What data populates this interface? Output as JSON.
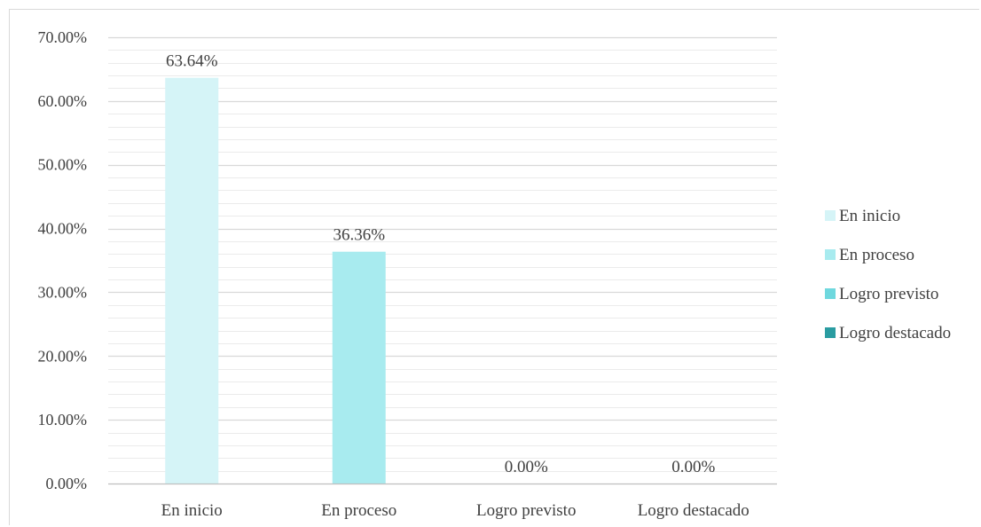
{
  "chart_data": {
    "type": "bar",
    "categories": [
      "En inicio",
      "En proceso",
      "Logro previsto",
      "Logro destacado"
    ],
    "values": [
      63.64,
      36.36,
      0.0,
      0.0
    ],
    "data_labels": [
      "63.64%",
      "36.36%",
      "0.00%",
      "0.00%"
    ],
    "colors": [
      "#d5f4f7",
      "#a8ebef",
      "#6fd8de",
      "#2a9ca1"
    ],
    "gridline_color": "#d9d9d9",
    "axis_color": "#bfbfbf",
    "ylim": [
      0,
      70
    ],
    "y_major_step": 10,
    "y_minor_step": 2,
    "y_tick_labels": [
      "0.00%",
      "10.00%",
      "20.00%",
      "30.00%",
      "40.00%",
      "50.00%",
      "60.00%",
      "70.00%"
    ],
    "grid": true,
    "legend": {
      "position": "right",
      "entries": [
        "En inicio",
        "En proceso",
        "Logro previsto",
        "Logro destacado"
      ]
    }
  }
}
